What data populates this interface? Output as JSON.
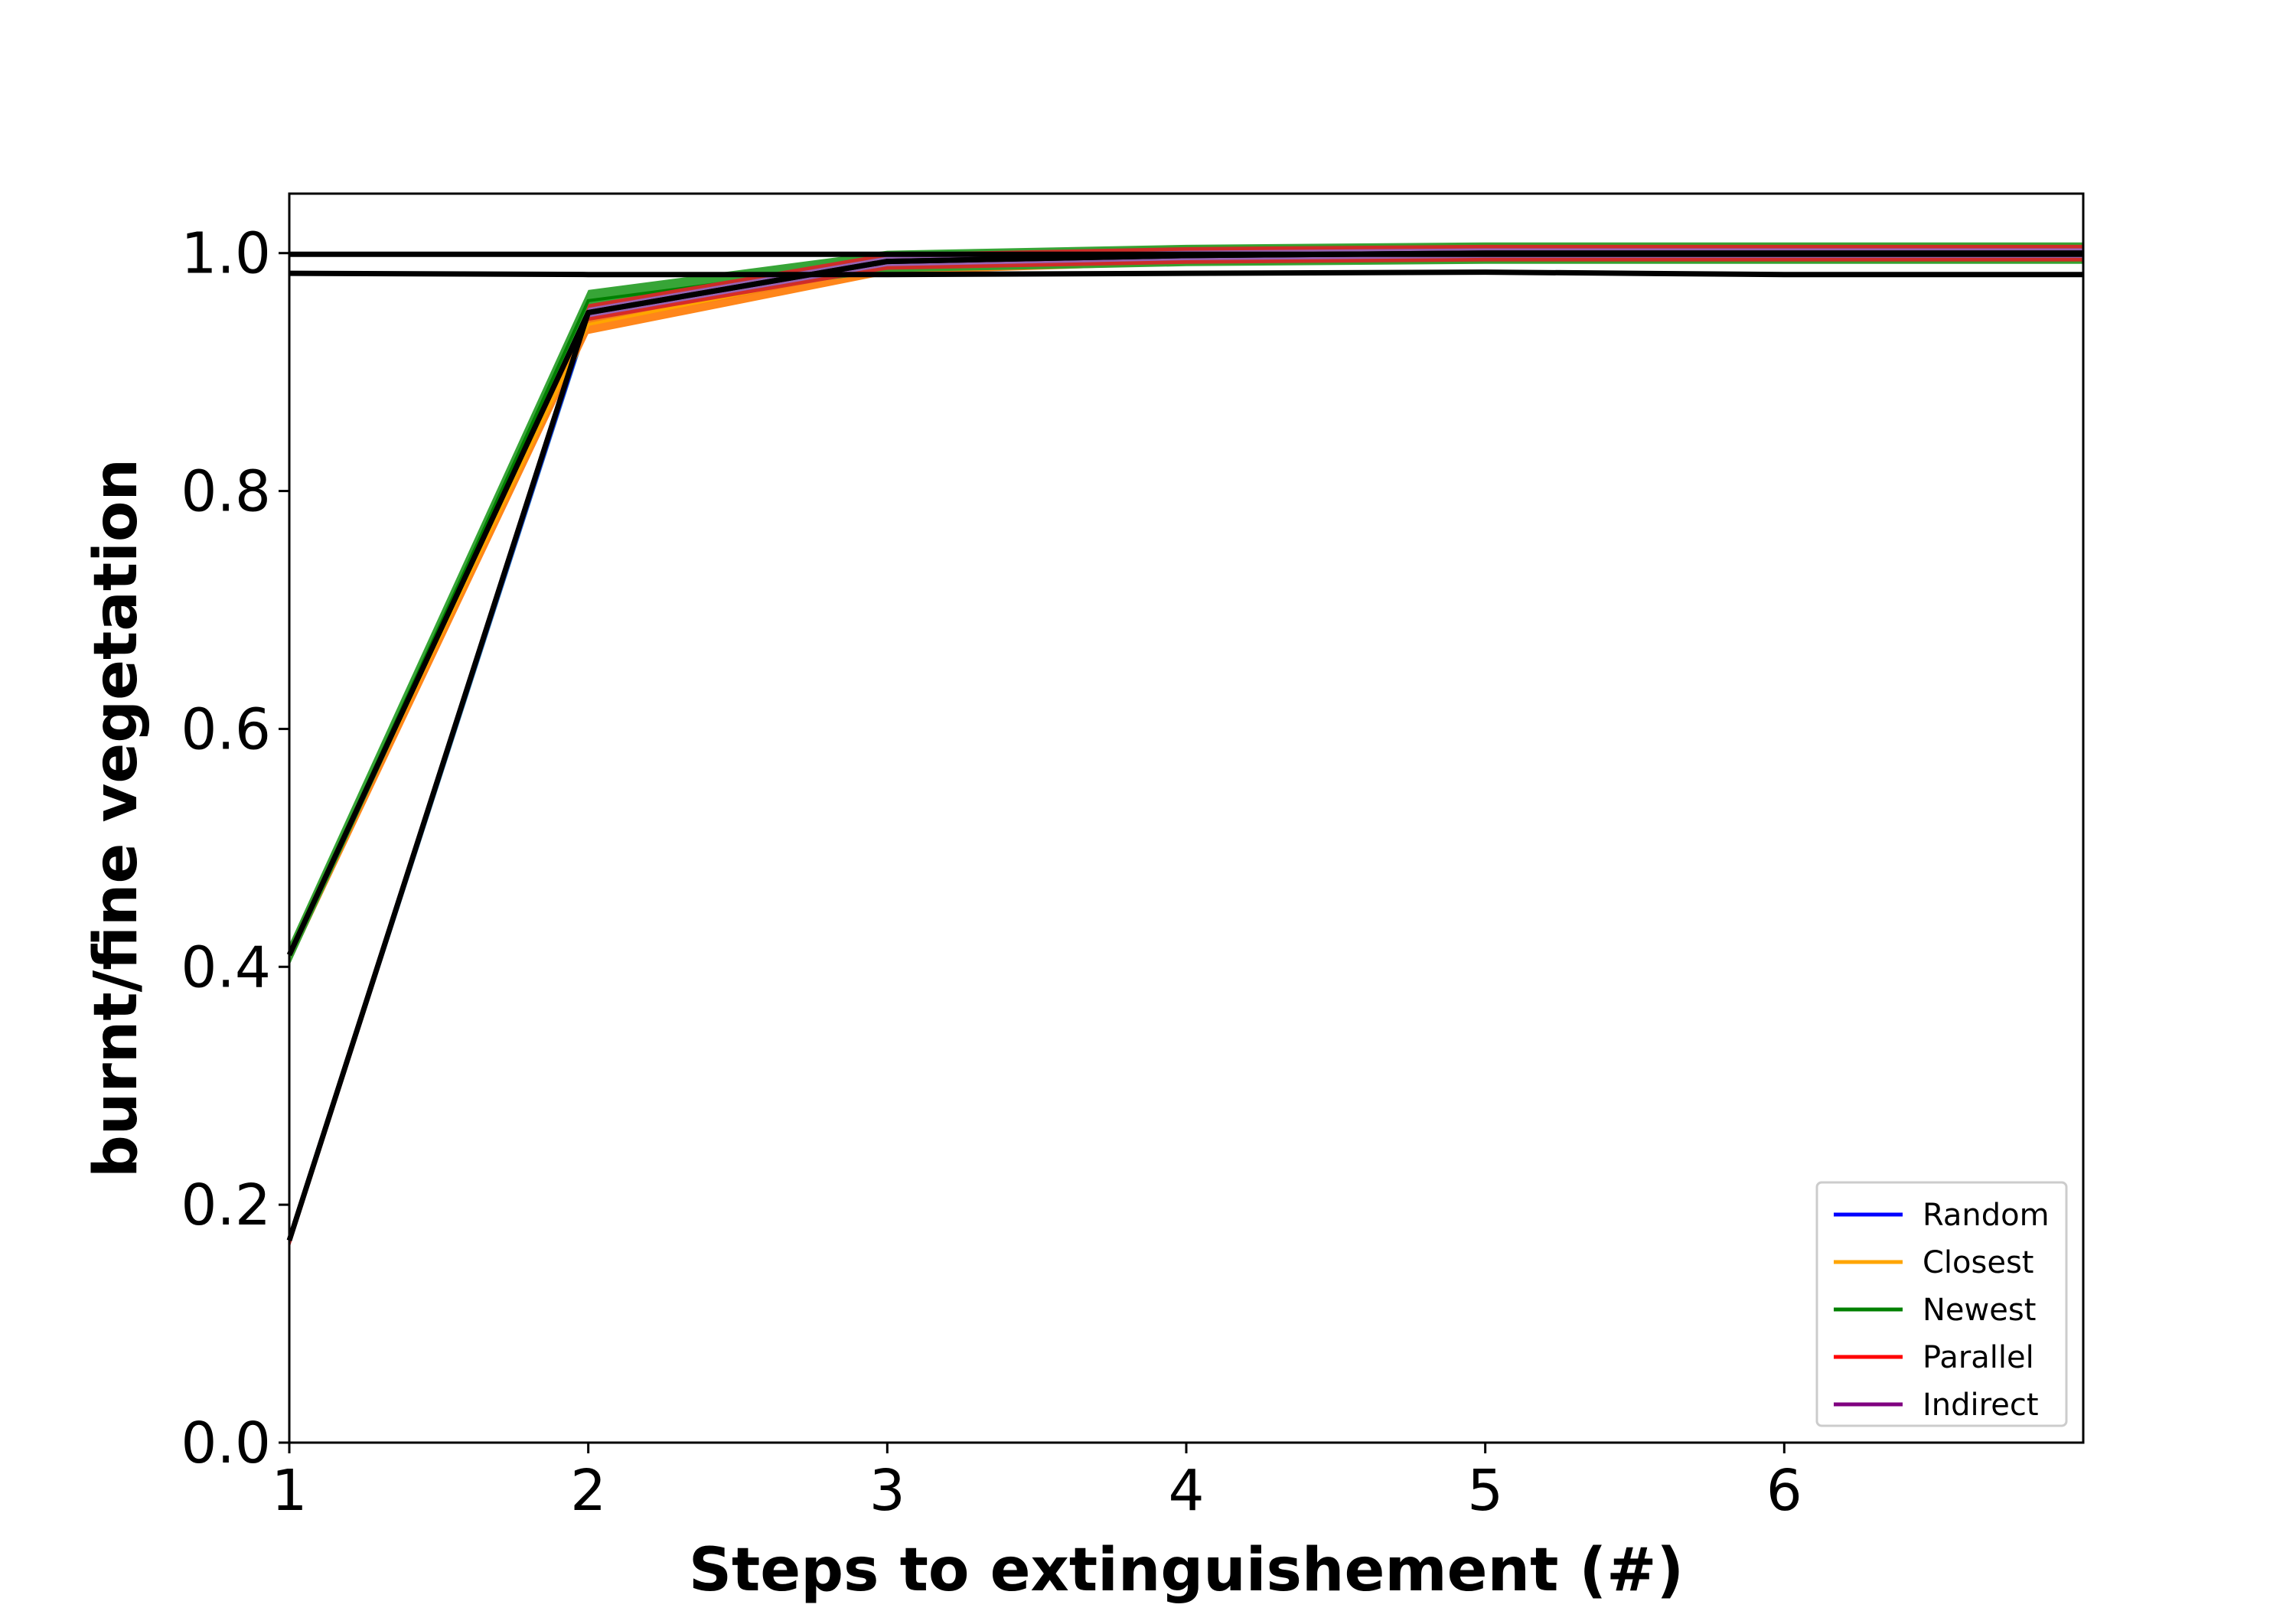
{
  "chart_data": {
    "type": "line",
    "xlabel": "Steps to extinguishement (#)",
    "ylabel": "burnt/fine vegetation",
    "xlim": [
      1,
      7
    ],
    "ylim": [
      0,
      1.05
    ],
    "x_ticks": [
      1,
      2,
      3,
      4,
      5,
      6
    ],
    "x_tick_labels": [
      "1",
      "2",
      "3",
      "4",
      "5",
      "6"
    ],
    "y_ticks": [
      0.0,
      0.2,
      0.4,
      0.6,
      0.8,
      1.0
    ],
    "y_tick_labels": [
      "0.0",
      "0.2",
      "0.4",
      "0.6",
      "0.8",
      "1.0"
    ],
    "legend_position": "lower-right",
    "series": [
      {
        "name": "Random",
        "color": "#0000ff",
        "band_color": "#1f77b4",
        "x": [
          1,
          2,
          3,
          4,
          5,
          6,
          7
        ],
        "values": [
          0.17,
          0.945,
          0.993,
          0.998,
          1.0,
          1.0,
          1.0
        ],
        "band": 0.006
      },
      {
        "name": "Closest",
        "color": "#ffa500",
        "band_color": "#ff7f0e",
        "x": [
          1,
          2,
          3,
          4,
          5,
          6,
          7
        ],
        "values": [
          0.41,
          0.94,
          0.99,
          0.998,
          1.0,
          1.0,
          1.0
        ],
        "band": 0.008
      },
      {
        "name": "Newest",
        "color": "#008000",
        "band_color": "#2ca02c",
        "x": [
          1,
          2,
          3,
          4,
          5,
          6,
          7
        ],
        "values": [
          0.41,
          0.96,
          0.993,
          0.998,
          1.0,
          1.0,
          1.0
        ],
        "band": 0.009
      },
      {
        "name": "Parallel",
        "color": "#ff0000",
        "band_color": "#d62728",
        "x": [
          1,
          2,
          3,
          4,
          5,
          6,
          7
        ],
        "values": [
          0.17,
          0.95,
          0.993,
          0.998,
          1.0,
          1.0,
          1.0
        ],
        "band": 0.007
      },
      {
        "name": "Indirect",
        "color": "#800080",
        "band_color": "#9467bd",
        "x": [
          1,
          2,
          3,
          4,
          5,
          6,
          7
        ],
        "values": [
          0.17,
          0.95,
          0.993,
          0.998,
          1.0,
          1.0,
          1.0
        ],
        "band": 0.004
      }
    ],
    "reference_lines": [
      {
        "color": "#000000",
        "x": [
          1,
          2,
          3,
          4,
          5,
          6,
          7
        ],
        "values": [
          0.41,
          0.95,
          0.993,
          0.998,
          1.0,
          1.0,
          1.0
        ]
      },
      {
        "color": "#000000",
        "x": [
          1,
          2,
          3,
          4,
          5,
          6,
          7
        ],
        "values": [
          0.17,
          0.95,
          0.993,
          0.998,
          1.0,
          1.0,
          1.0
        ]
      },
      {
        "color": "#000000",
        "x": [
          1,
          2,
          3,
          4,
          5,
          6,
          7
        ],
        "values": [
          0.999,
          0.999,
          0.999,
          0.999,
          0.999,
          0.999,
          0.999
        ]
      },
      {
        "color": "#000000",
        "x": [
          1,
          2,
          3,
          4,
          5,
          6,
          7
        ],
        "values": [
          0.983,
          0.982,
          0.982,
          0.983,
          0.984,
          0.982,
          0.982
        ]
      }
    ]
  }
}
